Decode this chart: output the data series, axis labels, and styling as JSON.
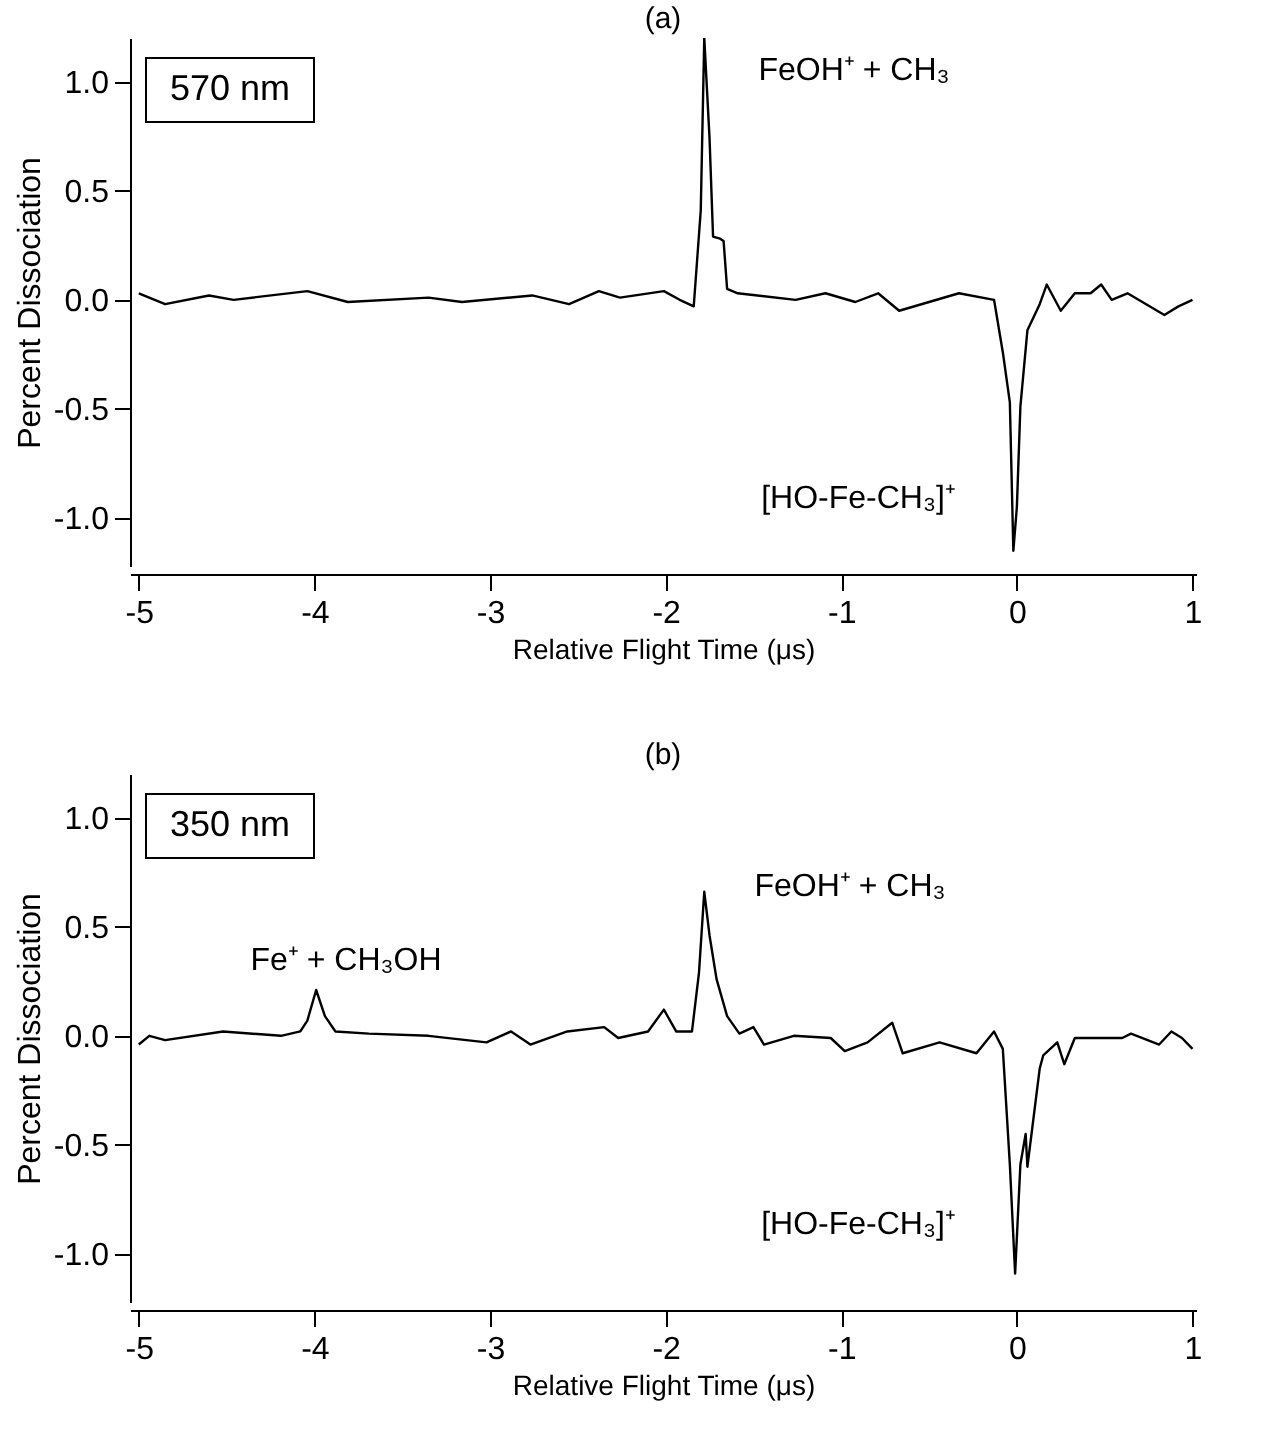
{
  "chart_data": [
    {
      "type": "line",
      "title": "(a)",
      "xlabel": "Relative Flight Time (μs)",
      "ylabel": "Percent Dissociation",
      "annotations": [
        "570 nm",
        "FeOH⁺ + CH₃",
        "[HO-Fe-CH₃]⁺"
      ],
      "series": [
        {
          "color": "#000000",
          "x": [
            -5.0,
            -4.85,
            -4.6,
            -4.46,
            -4.04,
            -3.81,
            -3.35,
            -3.16,
            -2.76,
            -2.55,
            -2.38,
            -2.26,
            -2.01,
            -1.92,
            -1.84,
            -1.8,
            -1.78,
            -1.75,
            -1.73,
            -1.69,
            -1.67,
            -1.65,
            -1.59,
            -1.26,
            -1.09,
            -0.92,
            -0.79,
            -0.67,
            -0.33,
            -0.13,
            -0.08,
            -0.04,
            -0.02,
            0.0,
            0.02,
            0.06,
            0.13,
            0.17,
            0.25,
            0.33,
            0.42,
            0.48,
            0.54,
            0.63,
            0.84,
            0.92,
            1.0
          ],
          "values": [
            0.03,
            -0.02,
            0.02,
            0.0,
            0.04,
            -0.01,
            0.01,
            -0.01,
            0.02,
            -0.02,
            0.04,
            0.01,
            0.04,
            0.0,
            -0.03,
            0.41,
            1.2,
            0.74,
            0.29,
            0.28,
            0.27,
            0.05,
            0.03,
            0.0,
            0.03,
            -0.01,
            0.03,
            -0.05,
            0.03,
            0.0,
            -0.24,
            -0.47,
            -1.15,
            -0.95,
            -0.49,
            -0.14,
            -0.02,
            0.07,
            -0.05,
            0.03,
            0.03,
            0.07,
            0.0,
            0.03,
            -0.07,
            -0.03,
            0.0
          ]
        }
      ],
      "xlim": [
        -5.05,
        1.02
      ],
      "xticks": [
        -5,
        -4,
        -3,
        -2,
        -1,
        0,
        1
      ],
      "ylim": [
        -1.22,
        1.2
      ],
      "yticks": [
        {
          "value": 1,
          "label": "1.0"
        },
        {
          "value": 0.5,
          "label": "0.5"
        },
        {
          "value": 0,
          "label": "0.0"
        },
        {
          "value": -0.5,
          "label": "-0.5"
        },
        {
          "value": -1,
          "label": "-1.0"
        }
      ],
      "grid": false,
      "line_style": "solid",
      "marker": "none"
    },
    {
      "type": "line",
      "title": "(b)",
      "xlabel": "Relative Flight Time (μs)",
      "ylabel": "Percent Dissociation",
      "annotations": [
        "350 nm",
        "Fe⁺ + CH₃OH",
        "FeOH⁺ + CH₃",
        "[HO-Fe-CH₃]⁺"
      ],
      "series": [
        {
          "color": "#000000",
          "x": [
            -5.0,
            -4.94,
            -4.85,
            -4.52,
            -4.19,
            -4.08,
            -4.04,
            -3.99,
            -3.94,
            -3.88,
            -3.69,
            -3.35,
            -3.02,
            -2.88,
            -2.77,
            -2.56,
            -2.35,
            -2.27,
            -2.1,
            -2.01,
            -1.94,
            -1.85,
            -1.81,
            -1.78,
            -1.75,
            -1.71,
            -1.65,
            -1.58,
            -1.5,
            -1.44,
            -1.27,
            -1.06,
            -0.98,
            -0.85,
            -0.71,
            -0.65,
            -0.44,
            -0.23,
            -0.13,
            -0.08,
            -0.04,
            -0.01,
            0.02,
            0.05,
            0.06,
            0.13,
            0.15,
            0.23,
            0.27,
            0.33,
            0.6,
            0.65,
            0.81,
            0.88,
            0.94,
            1.0
          ],
          "values": [
            -0.04,
            0.0,
            -0.02,
            0.02,
            0.0,
            0.02,
            0.07,
            0.21,
            0.09,
            0.02,
            0.01,
            0.0,
            -0.03,
            0.02,
            -0.04,
            0.02,
            0.04,
            -0.01,
            0.02,
            0.12,
            0.02,
            0.02,
            0.29,
            0.66,
            0.46,
            0.26,
            0.09,
            0.01,
            0.04,
            -0.04,
            0.0,
            -0.01,
            -0.07,
            -0.03,
            0.06,
            -0.08,
            -0.03,
            -0.08,
            0.02,
            -0.06,
            -0.59,
            -1.09,
            -0.59,
            -0.45,
            -0.6,
            -0.15,
            -0.09,
            -0.03,
            -0.13,
            -0.01,
            -0.01,
            0.01,
            -0.04,
            0.02,
            -0.01,
            -0.06
          ]
        }
      ],
      "xlim": [
        -5.05,
        1.02
      ],
      "xticks": [
        -5,
        -4,
        -3,
        -2,
        -1,
        0,
        1
      ],
      "ylim": [
        -1.22,
        1.2
      ],
      "yticks": [
        {
          "value": 1,
          "label": "1.0"
        },
        {
          "value": 0.5,
          "label": "0.5"
        },
        {
          "value": 0,
          "label": "0.0"
        },
        {
          "value": -0.5,
          "label": "-0.5"
        },
        {
          "value": -1,
          "label": "-1.0"
        }
      ],
      "grid": false,
      "line_style": "solid",
      "marker": "none"
    }
  ]
}
